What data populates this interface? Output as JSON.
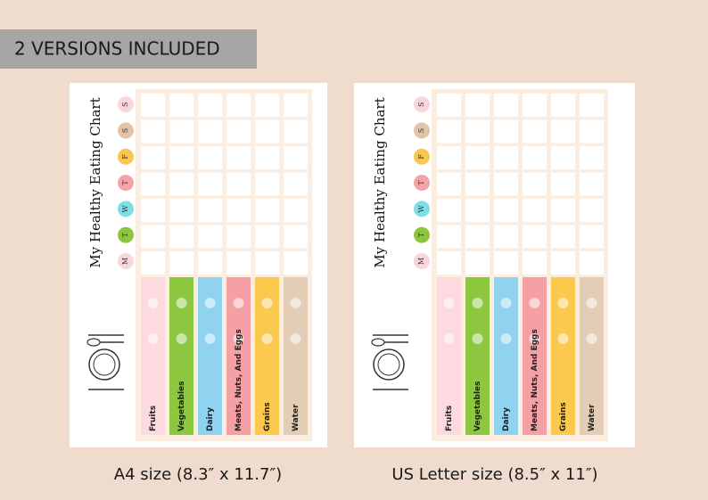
{
  "banner": "2 VERSIONS INCLUDED",
  "versions": [
    {
      "caption": "A4 size (8.3″ x 11.7″)",
      "title": "My Healthy Eating Chart",
      "days": [
        "M",
        "T",
        "W",
        "T",
        "F",
        "S",
        "S"
      ],
      "categories": [
        "Fruits",
        "Vegetables",
        "Dairy",
        "Meats, Nuts, And Eggs",
        "Grains",
        "Water"
      ]
    },
    {
      "caption": "US Letter size (8.5″ x 11″)",
      "title": "My Healthy Eating Chart",
      "days": [
        "M",
        "T",
        "W",
        "T",
        "F",
        "S",
        "S"
      ],
      "categories": [
        "Fruits",
        "Vegetables",
        "Dairy",
        "Meats, Nuts, And Eggs",
        "Grains",
        "Water"
      ]
    }
  ]
}
